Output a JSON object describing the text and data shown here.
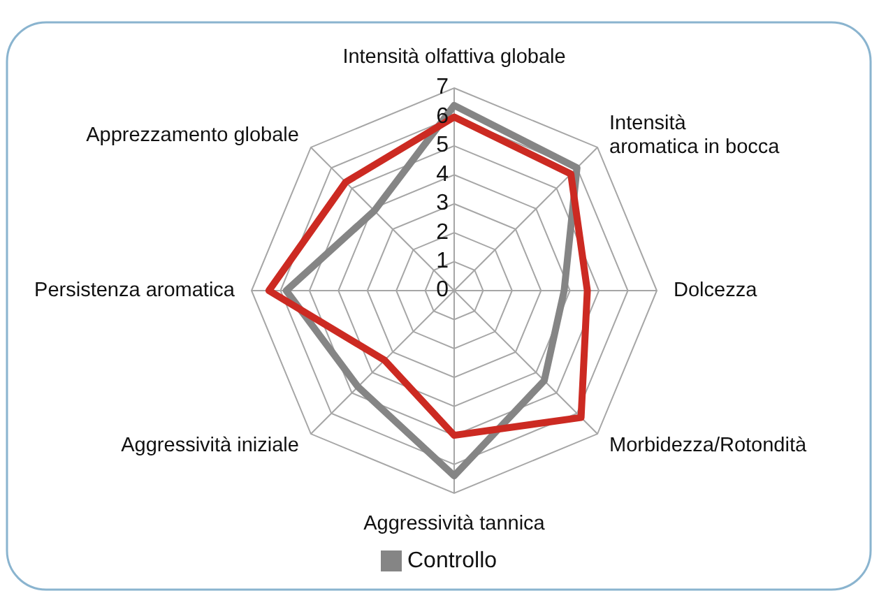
{
  "chart_data": {
    "type": "radar",
    "categories": [
      "Intensità olfattiva globale",
      "Intensità\naromatica in bocca",
      "Dolcezza",
      "Morbidezza/Rotondità",
      "Aggressività tannica",
      "Aggressività iniziale",
      "Persistenza aromatica",
      "Apprezzamento globale"
    ],
    "series": [
      {
        "name": "Controllo",
        "color": "#858585",
        "values": [
          6.4,
          6.0,
          3.8,
          4.4,
          6.4,
          4.7,
          5.8,
          3.9
        ]
      },
      {
        "color": "#cc2a22",
        "values": [
          6.0,
          5.7,
          4.6,
          6.2,
          5.0,
          3.4,
          6.4,
          5.3
        ]
      }
    ],
    "ylim": [
      0,
      7
    ],
    "yticks": [
      0,
      1,
      2,
      3,
      4,
      5,
      6,
      7
    ],
    "grid": true,
    "legend": "bottom",
    "marker": "none",
    "line_style": "solid"
  }
}
